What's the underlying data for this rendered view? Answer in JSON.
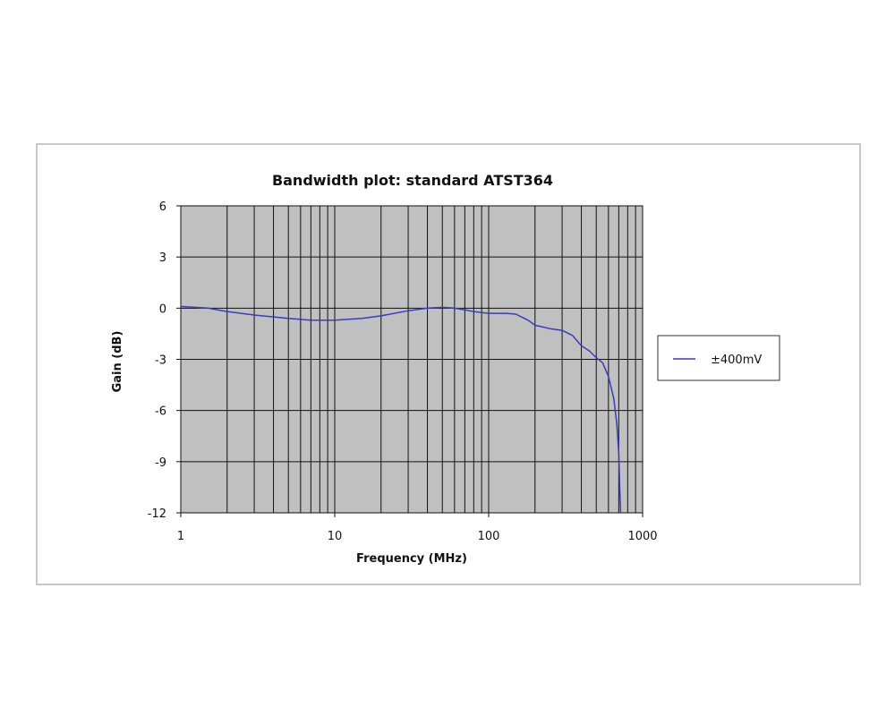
{
  "chart_data": {
    "type": "line",
    "title": "Bandwidth plot: standard ATST364",
    "xlabel": "Frequency (MHz)",
    "ylabel": "Gain (dB)",
    "x_scale": "log",
    "xlim": [
      1,
      1000
    ],
    "ylim": [
      -12,
      6
    ],
    "x_ticks": [
      1,
      10,
      100,
      1000
    ],
    "x_tick_labels": [
      "1",
      "10",
      "100",
      "1000"
    ],
    "y_ticks": [
      6,
      3,
      0,
      -3,
      -6,
      -9,
      -12
    ],
    "y_tick_labels": [
      "6",
      "3",
      "0",
      "-3",
      "-6",
      "-9",
      "-12"
    ],
    "grid": true,
    "plot_background": "#c0c0c0",
    "legend": {
      "position": "right"
    },
    "series": [
      {
        "name": "±400mV",
        "color": "#3b3bc0",
        "x": [
          1,
          1.5,
          2,
          3,
          5,
          7,
          10,
          15,
          20,
          30,
          40,
          50,
          60,
          70,
          80,
          100,
          130,
          150,
          180,
          200,
          250,
          300,
          350,
          400,
          450,
          500,
          550,
          600,
          650,
          680,
          700,
          710,
          720
        ],
        "y": [
          0.1,
          0,
          -0.2,
          -0.4,
          -0.6,
          -0.7,
          -0.7,
          -0.6,
          -0.45,
          -0.15,
          0,
          0.05,
          0,
          -0.1,
          -0.2,
          -0.3,
          -0.3,
          -0.35,
          -0.7,
          -1.0,
          -1.2,
          -1.3,
          -1.6,
          -2.2,
          -2.5,
          -2.9,
          -3.2,
          -4.0,
          -5.3,
          -6.8,
          -8.5,
          -10.5,
          -12
        ]
      }
    ]
  }
}
